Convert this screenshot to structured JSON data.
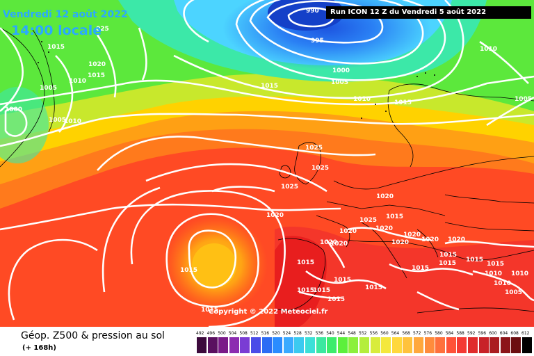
{
  "header": {
    "date": "Vendredi 12 août 2022",
    "time": "14:00 locale",
    "run": "Run ICON 12 Z du Vendredi 5 août 2022",
    "copyright": "Copyright © 2022 Meteociel.fr"
  },
  "footer": {
    "title": "Géop. Z500 & pression au sol",
    "lead": "(+ 168h)"
  },
  "colors": {
    "low": "#2266ee",
    "cold": "#55ccff",
    "mid": "#33dd33",
    "warm": "#ffdd00",
    "hot": "#ff3322",
    "isobar": "#ffffff"
  },
  "scale": {
    "labels": [
      "492",
      "496",
      "500",
      "504",
      "508",
      "512",
      "516",
      "520",
      "524",
      "528",
      "532",
      "536",
      "540",
      "544",
      "548",
      "552",
      "556",
      "560",
      "564",
      "568",
      "572",
      "576",
      "580",
      "584",
      "588",
      "592",
      "596",
      "600",
      "604",
      "608",
      "612"
    ],
    "colors": [
      "#3c0a3c",
      "#5a1060",
      "#7a1a88",
      "#8c2cb0",
      "#7a3cd4",
      "#4a4ce8",
      "#2c6cf4",
      "#2a8cff",
      "#3aaaff",
      "#3ccaf0",
      "#3ce0d8",
      "#3ce8a0",
      "#3cec6c",
      "#5cf03c",
      "#8cf03c",
      "#b4ee3c",
      "#d8ec3c",
      "#f4e83c",
      "#ffd83c",
      "#ffc23c",
      "#ffa83c",
      "#ff8c3c",
      "#ff703c",
      "#ff5238",
      "#f43a34",
      "#e02c2c",
      "#c82228",
      "#aa1c20",
      "#8c1418",
      "#6c0e10",
      "#000000"
    ]
  },
  "isobars": [
    {
      "text": "990"
    },
    {
      "text": "995"
    },
    {
      "text": "1000"
    },
    {
      "text": "1005"
    },
    {
      "text": "1010"
    },
    {
      "text": "1015"
    },
    {
      "text": "1015"
    },
    {
      "text": "1020"
    },
    {
      "text": "1015"
    },
    {
      "text": "1010"
    },
    {
      "text": "1005"
    },
    {
      "text": "025"
    },
    {
      "text": "1000"
    },
    {
      "text": "1005"
    },
    {
      "text": "1010"
    },
    {
      "text": "1015"
    },
    {
      "text": "1010"
    },
    {
      "text": "1005"
    },
    {
      "text": "1015"
    },
    {
      "text": "1025"
    },
    {
      "text": "1025"
    },
    {
      "text": "1025"
    },
    {
      "text": "1020"
    },
    {
      "text": "1020"
    },
    {
      "text": "1025"
    },
    {
      "text": "1020"
    },
    {
      "text": "1020"
    },
    {
      "text": "1020"
    },
    {
      "text": "1020"
    },
    {
      "text": "1020"
    },
    {
      "text": "1020"
    },
    {
      "text": "1015"
    },
    {
      "text": "1015"
    },
    {
      "text": "1015"
    },
    {
      "text": "1015"
    },
    {
      "text": "1015"
    },
    {
      "text": "1015"
    },
    {
      "text": "1015"
    },
    {
      "text": "1015"
    },
    {
      "text": "1015"
    },
    {
      "text": "1010"
    },
    {
      "text": "1010"
    },
    {
      "text": "1005"
    },
    {
      "text": "1015"
    },
    {
      "text": "1015"
    },
    {
      "text": "1020"
    },
    {
      "text": "1020"
    },
    {
      "text": "1015"
    },
    {
      "text": "1015"
    },
    {
      "text": "1010"
    }
  ]
}
